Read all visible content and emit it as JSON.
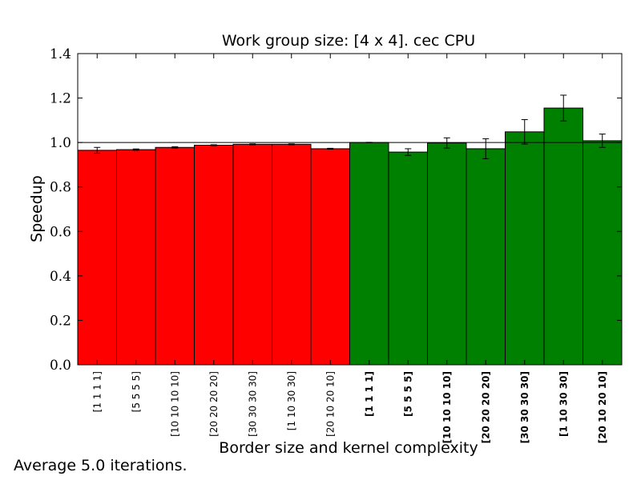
{
  "chart_data": {
    "type": "bar",
    "title": "Work group size: [4 x 4]. cec CPU",
    "xlabel": "Border size and kernel complexity",
    "ylabel": "Speedup",
    "ylim": [
      0,
      1.4
    ],
    "yticks": [
      "0.0",
      "0.2",
      "0.4",
      "0.6",
      "0.8",
      "1.0",
      "1.2",
      "1.4"
    ],
    "reference_line": 1.0,
    "grid": false,
    "colors": {
      "slower": "#ff0000",
      "faster": "#008000"
    },
    "categories": [
      {
        "label": "[1 1 1 1]",
        "bold": false
      },
      {
        "label": "[5 5 5 5]",
        "bold": false
      },
      {
        "label": "[10 10 10 10]",
        "bold": false
      },
      {
        "label": "[20 20 20 20]",
        "bold": false
      },
      {
        "label": "[30 30 30 30]",
        "bold": false
      },
      {
        "label": "[1 10 30 30]",
        "bold": false
      },
      {
        "label": "[20 10 20 10]",
        "bold": false
      },
      {
        "label": "[1 1 1 1]",
        "bold": true
      },
      {
        "label": "[5 5 5 5]",
        "bold": true
      },
      {
        "label": "[10 10 10 10]",
        "bold": true
      },
      {
        "label": "[20 20 20 20]",
        "bold": true
      },
      {
        "label": "[30 30 30 30]",
        "bold": true
      },
      {
        "label": "[1 10 30 30]",
        "bold": true
      },
      {
        "label": "[20 10 20 10]",
        "bold": true
      }
    ],
    "values": [
      0.965,
      0.968,
      0.978,
      0.988,
      0.992,
      0.992,
      0.972,
      1.0,
      0.957,
      0.998,
      0.972,
      1.048,
      1.155,
      1.008
    ],
    "errors": [
      0.013,
      0.003,
      0.003,
      0.002,
      0.002,
      0.002,
      0.002,
      0.001,
      0.015,
      0.023,
      0.045,
      0.055,
      0.058,
      0.03
    ]
  },
  "footer": {
    "note": "Average 5.0 iterations."
  }
}
